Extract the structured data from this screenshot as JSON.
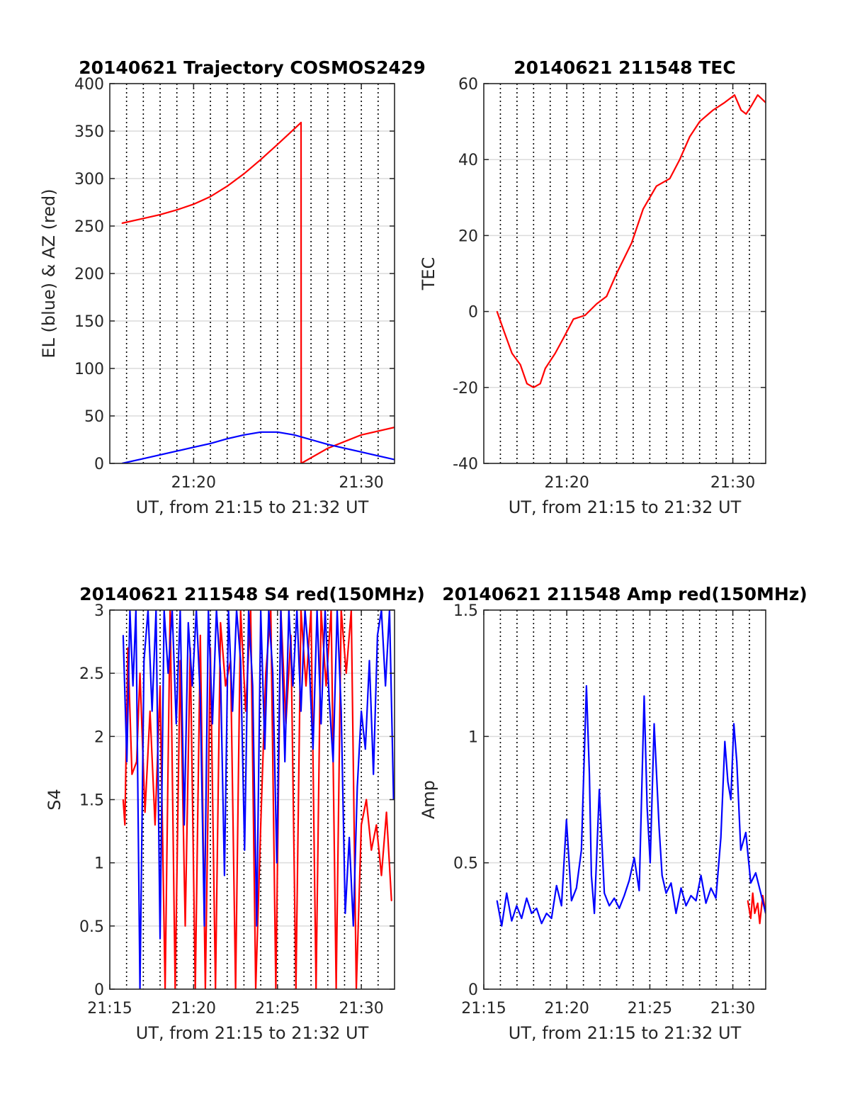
{
  "chart_data": [
    {
      "id": "trajectory",
      "type": "line",
      "title": "20140621 Trajectory COSMOS2429",
      "xlabel": "UT, from 21:15 to 21:32 UT",
      "ylabel": "EL (blue) & AZ (red)",
      "xlim": [
        21.25,
        21.533
      ],
      "ylim": [
        0,
        400
      ],
      "yticks": [
        0,
        50,
        100,
        150,
        200,
        250,
        300,
        350,
        400
      ],
      "xticks": [
        {
          "value": 21.3333,
          "label": "21:20"
        },
        {
          "value": 21.5,
          "label": "21:30"
        }
      ],
      "minor_x_grid_minutes": 1,
      "grid": true,
      "series": [
        {
          "color": "#ff0000",
          "x": [
            21.2622,
            21.2833,
            21.3,
            21.3167,
            21.3333,
            21.35,
            21.3667,
            21.3833,
            21.4,
            21.4167,
            21.43,
            21.4401,
            21.4402,
            21.4667,
            21.5,
            21.533
          ],
          "y": [
            253,
            258,
            262,
            267,
            273,
            281,
            292,
            305,
            320,
            336,
            349,
            359,
            0,
            16,
            30,
            38
          ]
        },
        {
          "color": "#0000ff",
          "x": [
            21.2622,
            21.2833,
            21.3,
            21.3167,
            21.3333,
            21.35,
            21.3667,
            21.3833,
            21.4,
            21.4167,
            21.4333,
            21.45,
            21.4667,
            21.4833,
            21.5,
            21.5167,
            21.533
          ],
          "y": [
            0,
            5,
            9,
            13,
            17,
            21,
            26,
            30,
            33,
            33,
            30,
            25,
            20,
            16,
            12,
            8,
            4
          ]
        }
      ]
    },
    {
      "id": "tec",
      "type": "line",
      "title": "20140621 211548 TEC",
      "xlabel": "UT, from 21:15 to 21:32 UT",
      "ylabel": "TEC",
      "xlim": [
        21.25,
        21.533
      ],
      "ylim": [
        -40,
        60
      ],
      "yticks": [
        -40,
        -20,
        0,
        20,
        40,
        60
      ],
      "xticks": [
        {
          "value": 21.3333,
          "label": "21:20"
        },
        {
          "value": 21.5,
          "label": "21:30"
        }
      ],
      "minor_x_grid_minutes": 1,
      "grid": true,
      "series": [
        {
          "color": "#ff0000",
          "x": [
            21.2633,
            21.27,
            21.2783,
            21.2867,
            21.2933,
            21.3,
            21.3067,
            21.3117,
            21.3217,
            21.33,
            21.34,
            21.3517,
            21.3633,
            21.3733,
            21.3833,
            21.3983,
            21.41,
            21.4233,
            21.4367,
            21.4467,
            21.4567,
            21.4667,
            21.48,
            21.4917,
            21.5017,
            21.5083,
            21.5133,
            21.5183,
            21.525,
            21.533
          ],
          "y": [
            0,
            -5,
            -11,
            -14,
            -19,
            -20,
            -19,
            -15,
            -11,
            -7,
            -2,
            -1,
            2,
            4,
            10,
            18,
            27,
            33,
            35,
            40,
            46,
            50,
            53,
            55,
            57,
            53,
            52,
            54,
            57,
            55
          ]
        }
      ]
    },
    {
      "id": "s4",
      "type": "line",
      "title": "20140621 211548 S4 red(150MHz)",
      "xlabel": "UT, from 21:15 to 21:32 UT",
      "ylabel": "S4",
      "xlim": [
        21.25,
        21.533
      ],
      "ylim": [
        0,
        3
      ],
      "yticks": [
        0,
        0.5,
        1,
        1.5,
        2,
        2.5,
        3
      ],
      "xticks": [
        {
          "value": 21.25,
          "label": "21:15"
        },
        {
          "value": 21.3333,
          "label": "21:20"
        },
        {
          "value": 21.4167,
          "label": "21:25"
        },
        {
          "value": 21.5,
          "label": "21:30"
        }
      ],
      "minor_x_grid_minutes": 1,
      "grid": true,
      "series": [
        {
          "color": "#ff0000",
          "x": [
            21.2633,
            21.265,
            21.268,
            21.272,
            21.2767,
            21.28,
            21.285,
            21.29,
            21.295,
            21.3,
            21.305,
            21.31,
            21.315,
            21.32,
            21.325,
            21.33,
            21.335,
            21.34,
            21.345,
            21.35,
            21.355,
            21.36,
            21.365,
            21.37,
            21.375,
            21.38,
            21.385,
            21.39,
            21.395,
            21.4,
            21.405,
            21.41,
            21.415,
            21.42,
            21.425,
            21.43,
            21.435,
            21.44,
            21.445,
            21.45,
            21.455,
            21.46,
            21.465,
            21.47,
            21.475,
            21.48,
            21.485,
            21.49,
            21.495,
            21.5,
            21.505,
            21.51,
            21.515,
            21.52,
            21.525,
            21.53
          ],
          "y": [
            1.5,
            1.3,
            2.7,
            1.7,
            1.8,
            2.5,
            1.4,
            2.2,
            1.3,
            2.4,
            0,
            3,
            0,
            2.6,
            0.5,
            2.7,
            0,
            2.8,
            0,
            2.7,
            0,
            2.9,
            2.4,
            2.6,
            0,
            3,
            2.2,
            3,
            0,
            1.3,
            2.5,
            3,
            0,
            3,
            2.1,
            2.8,
            0,
            3,
            2.4,
            3,
            0,
            3,
            2.4,
            3,
            0,
            3,
            2.5,
            3,
            0,
            1.3,
            1.5,
            1.1,
            1.3,
            0.9,
            1.4,
            0.7
          ]
        },
        {
          "color": "#0000ff",
          "x": [
            21.2633,
            21.267,
            21.27,
            21.273,
            21.276,
            21.28,
            21.284,
            21.288,
            21.292,
            21.296,
            21.3,
            21.304,
            21.308,
            21.312,
            21.316,
            21.32,
            21.324,
            21.328,
            21.332,
            21.336,
            21.34,
            21.344,
            21.348,
            21.352,
            21.356,
            21.36,
            21.364,
            21.368,
            21.372,
            21.376,
            21.38,
            21.384,
            21.388,
            21.392,
            21.396,
            21.4,
            21.404,
            21.408,
            21.412,
            21.416,
            21.42,
            21.424,
            21.428,
            21.432,
            21.436,
            21.44,
            21.444,
            21.448,
            21.452,
            21.456,
            21.46,
            21.464,
            21.468,
            21.472,
            21.476,
            21.48,
            21.484,
            21.488,
            21.492,
            21.496,
            21.5,
            21.504,
            21.508,
            21.512,
            21.516,
            21.52,
            21.524,
            21.528,
            21.532
          ],
          "y": [
            2.8,
            1.8,
            3,
            2.4,
            3,
            0,
            2.6,
            3,
            2.2,
            3,
            0.4,
            3,
            2.5,
            3,
            2.1,
            3,
            1.3,
            2.9,
            2.4,
            3,
            2.3,
            0.5,
            3,
            2.1,
            3,
            2.5,
            0.9,
            3,
            2.2,
            3,
            2.6,
            1.1,
            3,
            2.4,
            0.5,
            3,
            1.9,
            3,
            2.5,
            1,
            3,
            1.8,
            3,
            2.4,
            3,
            2.2,
            3,
            2.6,
            1.9,
            3,
            2.1,
            3,
            2.3,
            1.8,
            3,
            2.2,
            0.6,
            1.2,
            0.5,
            1.6,
            2.2,
            1.9,
            2.6,
            1.7,
            2.8,
            3,
            2.4,
            3,
            1.5
          ]
        }
      ]
    },
    {
      "id": "amp",
      "type": "line",
      "title": "20140621 211548 Amp red(150MHz)",
      "xlabel": "UT, from 21:15 to 21:32 UT",
      "ylabel": "Amp",
      "xlim": [
        21.25,
        21.533
      ],
      "ylim": [
        0,
        1.5
      ],
      "yticks": [
        0,
        0.5,
        1,
        1.5
      ],
      "xticks": [
        {
          "value": 21.25,
          "label": "21:15"
        },
        {
          "value": 21.3333,
          "label": "21:20"
        },
        {
          "value": 21.4167,
          "label": "21:25"
        },
        {
          "value": 21.5,
          "label": "21:30"
        }
      ],
      "minor_x_grid_minutes": 1,
      "grid": true,
      "series": [
        {
          "color": "#ff0000",
          "x": [
            21.515,
            21.518,
            21.52,
            21.522,
            21.525,
            21.527,
            21.53,
            21.533
          ],
          "y": [
            0.35,
            0.28,
            0.38,
            0.3,
            0.34,
            0.26,
            0.37,
            0.3
          ]
        },
        {
          "color": "#0000ff",
          "x": [
            21.2633,
            21.268,
            21.273,
            21.278,
            21.283,
            21.288,
            21.293,
            21.298,
            21.303,
            21.308,
            21.313,
            21.318,
            21.323,
            21.328,
            21.333,
            21.338,
            21.343,
            21.348,
            21.353,
            21.356,
            21.358,
            21.361,
            21.366,
            21.371,
            21.376,
            21.381,
            21.386,
            21.391,
            21.396,
            21.401,
            21.406,
            21.411,
            21.414,
            21.417,
            21.421,
            21.426,
            21.429,
            21.433,
            21.438,
            21.443,
            21.448,
            21.453,
            21.458,
            21.463,
            21.468,
            21.473,
            21.478,
            21.483,
            21.488,
            21.492,
            21.495,
            21.498,
            21.501,
            21.504,
            21.508,
            21.513,
            21.518,
            21.523,
            21.528,
            21.533
          ],
          "y": [
            0.35,
            0.25,
            0.38,
            0.27,
            0.33,
            0.28,
            0.36,
            0.3,
            0.32,
            0.26,
            0.3,
            0.28,
            0.41,
            0.33,
            0.67,
            0.35,
            0.4,
            0.55,
            1.2,
            0.85,
            0.45,
            0.3,
            0.79,
            0.38,
            0.33,
            0.36,
            0.32,
            0.37,
            0.43,
            0.52,
            0.39,
            1.16,
            0.72,
            0.5,
            1.05,
            0.64,
            0.45,
            0.38,
            0.42,
            0.3,
            0.4,
            0.33,
            0.37,
            0.35,
            0.45,
            0.34,
            0.4,
            0.36,
            0.6,
            0.98,
            0.82,
            0.75,
            1.05,
            0.9,
            0.55,
            0.62,
            0.42,
            0.46,
            0.38,
            0.3
          ]
        }
      ]
    }
  ]
}
